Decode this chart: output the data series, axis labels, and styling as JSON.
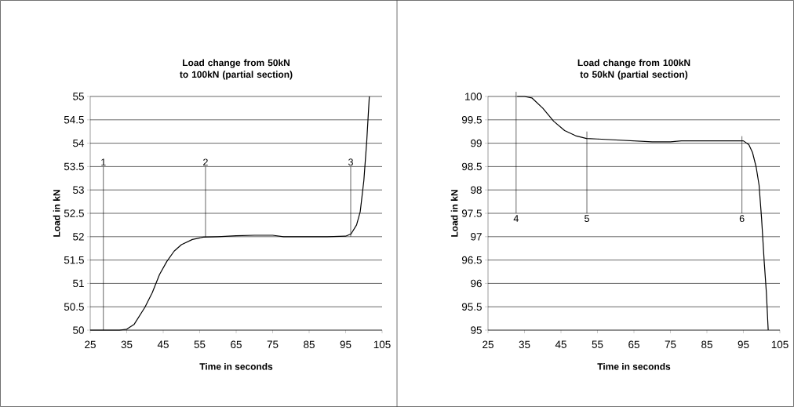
{
  "chart_data": [
    {
      "type": "line",
      "title": "Load change from 50kN to 100kN (partial section)",
      "xlabel": "Time in seconds",
      "ylabel": "Load in kN",
      "color": "#000000",
      "x": [
        25,
        33,
        35,
        37,
        40,
        42,
        44,
        46,
        48,
        50,
        53,
        56,
        60,
        65,
        70,
        75,
        78,
        90,
        95,
        96.5,
        98,
        99,
        100,
        100.8,
        101.5
      ],
      "values": [
        50,
        50,
        50.02,
        50.12,
        50.49,
        50.8,
        51.19,
        51.47,
        51.69,
        51.83,
        51.94,
        51.99,
        52,
        52.02,
        52.03,
        52.03,
        52,
        52,
        52.01,
        52.06,
        52.25,
        52.53,
        53.2,
        54.05,
        55
      ],
      "xlim": [
        25,
        105
      ],
      "ylim": [
        50,
        55
      ],
      "xticks": [
        25,
        35,
        45,
        55,
        65,
        75,
        85,
        95,
        105
      ],
      "yticks": [
        50,
        50.5,
        51,
        51.5,
        52,
        52.5,
        53,
        53.5,
        54,
        54.5,
        55
      ],
      "grid": "y",
      "annotations": [
        {
          "text": "1",
          "x": 28.6,
          "y": 50
        },
        {
          "text": "2",
          "x": 56.6,
          "y": 51.99
        },
        {
          "text": "3",
          "x": 96.4,
          "y": 52.06
        }
      ]
    },
    {
      "type": "line",
      "title": "Load change from 100kN to 50kN (partial section)",
      "xlabel": "Time in seconds",
      "ylabel": "Load in kN",
      "color": "#000000",
      "x": [
        33,
        35,
        37,
        40,
        43,
        46,
        49,
        52,
        55,
        60,
        65,
        70,
        75,
        78,
        90,
        95,
        96.5,
        97.5,
        98.5,
        99.3,
        100,
        100.7,
        101.3,
        101.8
      ],
      "values": [
        100,
        100,
        99.97,
        99.75,
        99.47,
        99.27,
        99.16,
        99.1,
        99.09,
        99.07,
        99.05,
        99.03,
        99.03,
        99.05,
        99.05,
        99.05,
        98.97,
        98.8,
        98.49,
        98.1,
        97.37,
        96.47,
        95.8,
        95
      ],
      "xlim": [
        25,
        105
      ],
      "ylim": [
        95,
        100
      ],
      "xticks": [
        25,
        35,
        45,
        55,
        65,
        75,
        85,
        95,
        105
      ],
      "yticks": [
        95,
        95.5,
        96,
        96.5,
        97,
        97.5,
        98,
        98.5,
        99,
        99.5,
        100
      ],
      "grid": "y",
      "annotations": [
        {
          "text": "4",
          "x": 32.7,
          "y": 100
        },
        {
          "text": "5",
          "x": 52.1,
          "y": 99.1
        },
        {
          "text": "6",
          "x": 94.6,
          "y": 99.05
        }
      ]
    }
  ]
}
